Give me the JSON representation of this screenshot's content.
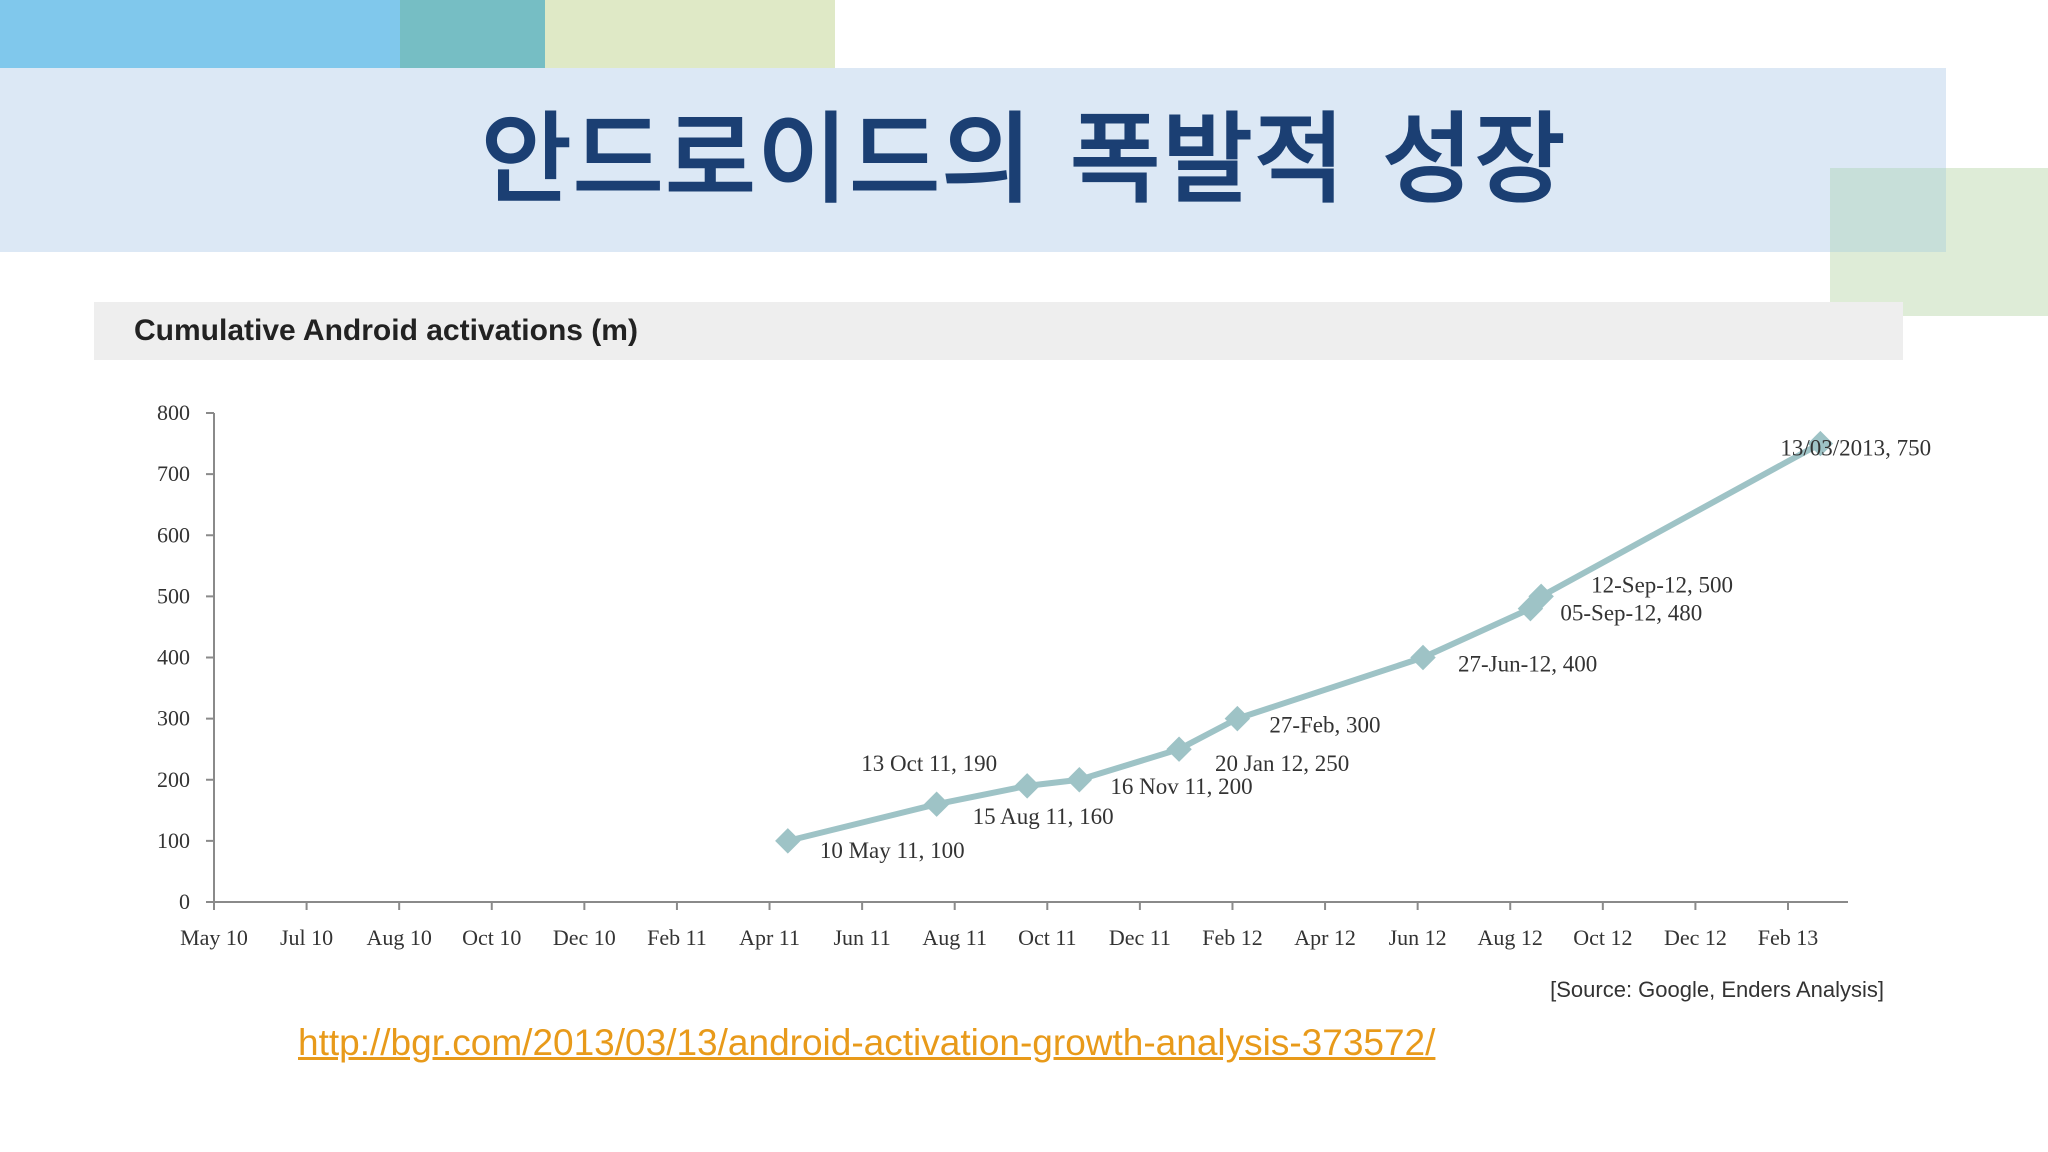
{
  "slide": {
    "title": "안드로이드의 폭발적 성장",
    "link": "http://bgr.com/2013/03/13/android-activation-growth-analysis-373572/"
  },
  "colors": {
    "deco_blue": "#80c8ec",
    "deco_teal": "#76bec4",
    "deco_green": "#dfe9c6",
    "banner": "#dce8f5",
    "title": "#1b3f73",
    "series": "#9ec3c6",
    "link": "#e89a1a"
  },
  "chart_data": {
    "type": "line",
    "title": "Cumulative Android activations (m)",
    "source": "[Source: Google, Enders Analysis]",
    "xlabel": "",
    "ylabel": "",
    "ylim": [
      0,
      800
    ],
    "yticks": [
      "0",
      "100",
      "200",
      "300",
      "400",
      "500",
      "600",
      "700",
      "800"
    ],
    "xlim": [
      "2010-05-01",
      "2013-03-31"
    ],
    "xtick_labels": [
      "May 10",
      "Jul 10",
      "Aug 10",
      "Oct 10",
      "Dec 10",
      "Feb 11",
      "Apr 11",
      "Jun 11",
      "Aug 11",
      "Oct 11",
      "Dec 11",
      "Feb 12",
      "Apr 12",
      "Jun 12",
      "Aug 12",
      "Oct 12",
      "Dec 12",
      "Feb 13"
    ],
    "grid": false,
    "series": [
      {
        "points": [
          {
            "x": "2011-05-10",
            "y": 100,
            "label": "10 May 11, 100"
          },
          {
            "x": "2011-08-15",
            "y": 160,
            "label": "15 Aug 11, 160"
          },
          {
            "x": "2011-10-13",
            "y": 190,
            "label": "13 Oct 11, 190"
          },
          {
            "x": "2011-11-16",
            "y": 200,
            "label": "16 Nov 11, 200"
          },
          {
            "x": "2012-01-20",
            "y": 250,
            "label": "20 Jan 12, 250"
          },
          {
            "x": "2012-02-27",
            "y": 300,
            "label": "27-Feb, 300"
          },
          {
            "x": "2012-06-27",
            "y": 400,
            "label": "27-Jun-12, 400"
          },
          {
            "x": "2012-09-05",
            "y": 480,
            "label": "05-Sep-12, 480"
          },
          {
            "x": "2012-09-12",
            "y": 500,
            "label": "12-Sep-12, 500"
          },
          {
            "x": "2013-03-13",
            "y": 750,
            "label": "13/03/2013, 750"
          }
        ]
      }
    ]
  }
}
